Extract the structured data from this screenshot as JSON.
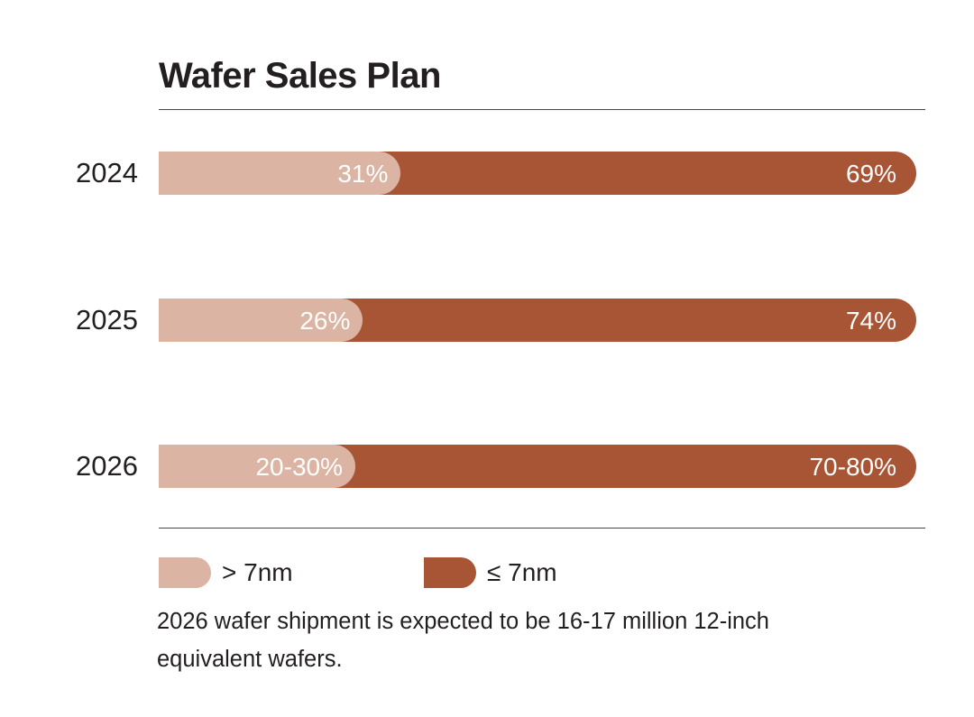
{
  "chart_data": {
    "type": "bar",
    "orientation": "horizontal",
    "stacked": true,
    "title": "Wafer Sales Plan",
    "categories": [
      "2024",
      "2025",
      "2026"
    ],
    "series": [
      {
        "name": "> 7nm",
        "color": "#dbb4a3",
        "values": [
          31,
          26,
          25
        ],
        "labels": [
          "31%",
          "26%",
          "20-30%"
        ]
      },
      {
        "name": "≤ 7nm",
        "color": "#a75535",
        "values": [
          69,
          74,
          75
        ],
        "labels": [
          "69%",
          "74%",
          "70-80%"
        ]
      }
    ],
    "xlim": [
      0,
      100
    ],
    "grid": false,
    "legend_position": "bottom-left",
    "note": "2026 wafer shipment is expected to be 16-17 million 12-inch equivalent wafers."
  }
}
